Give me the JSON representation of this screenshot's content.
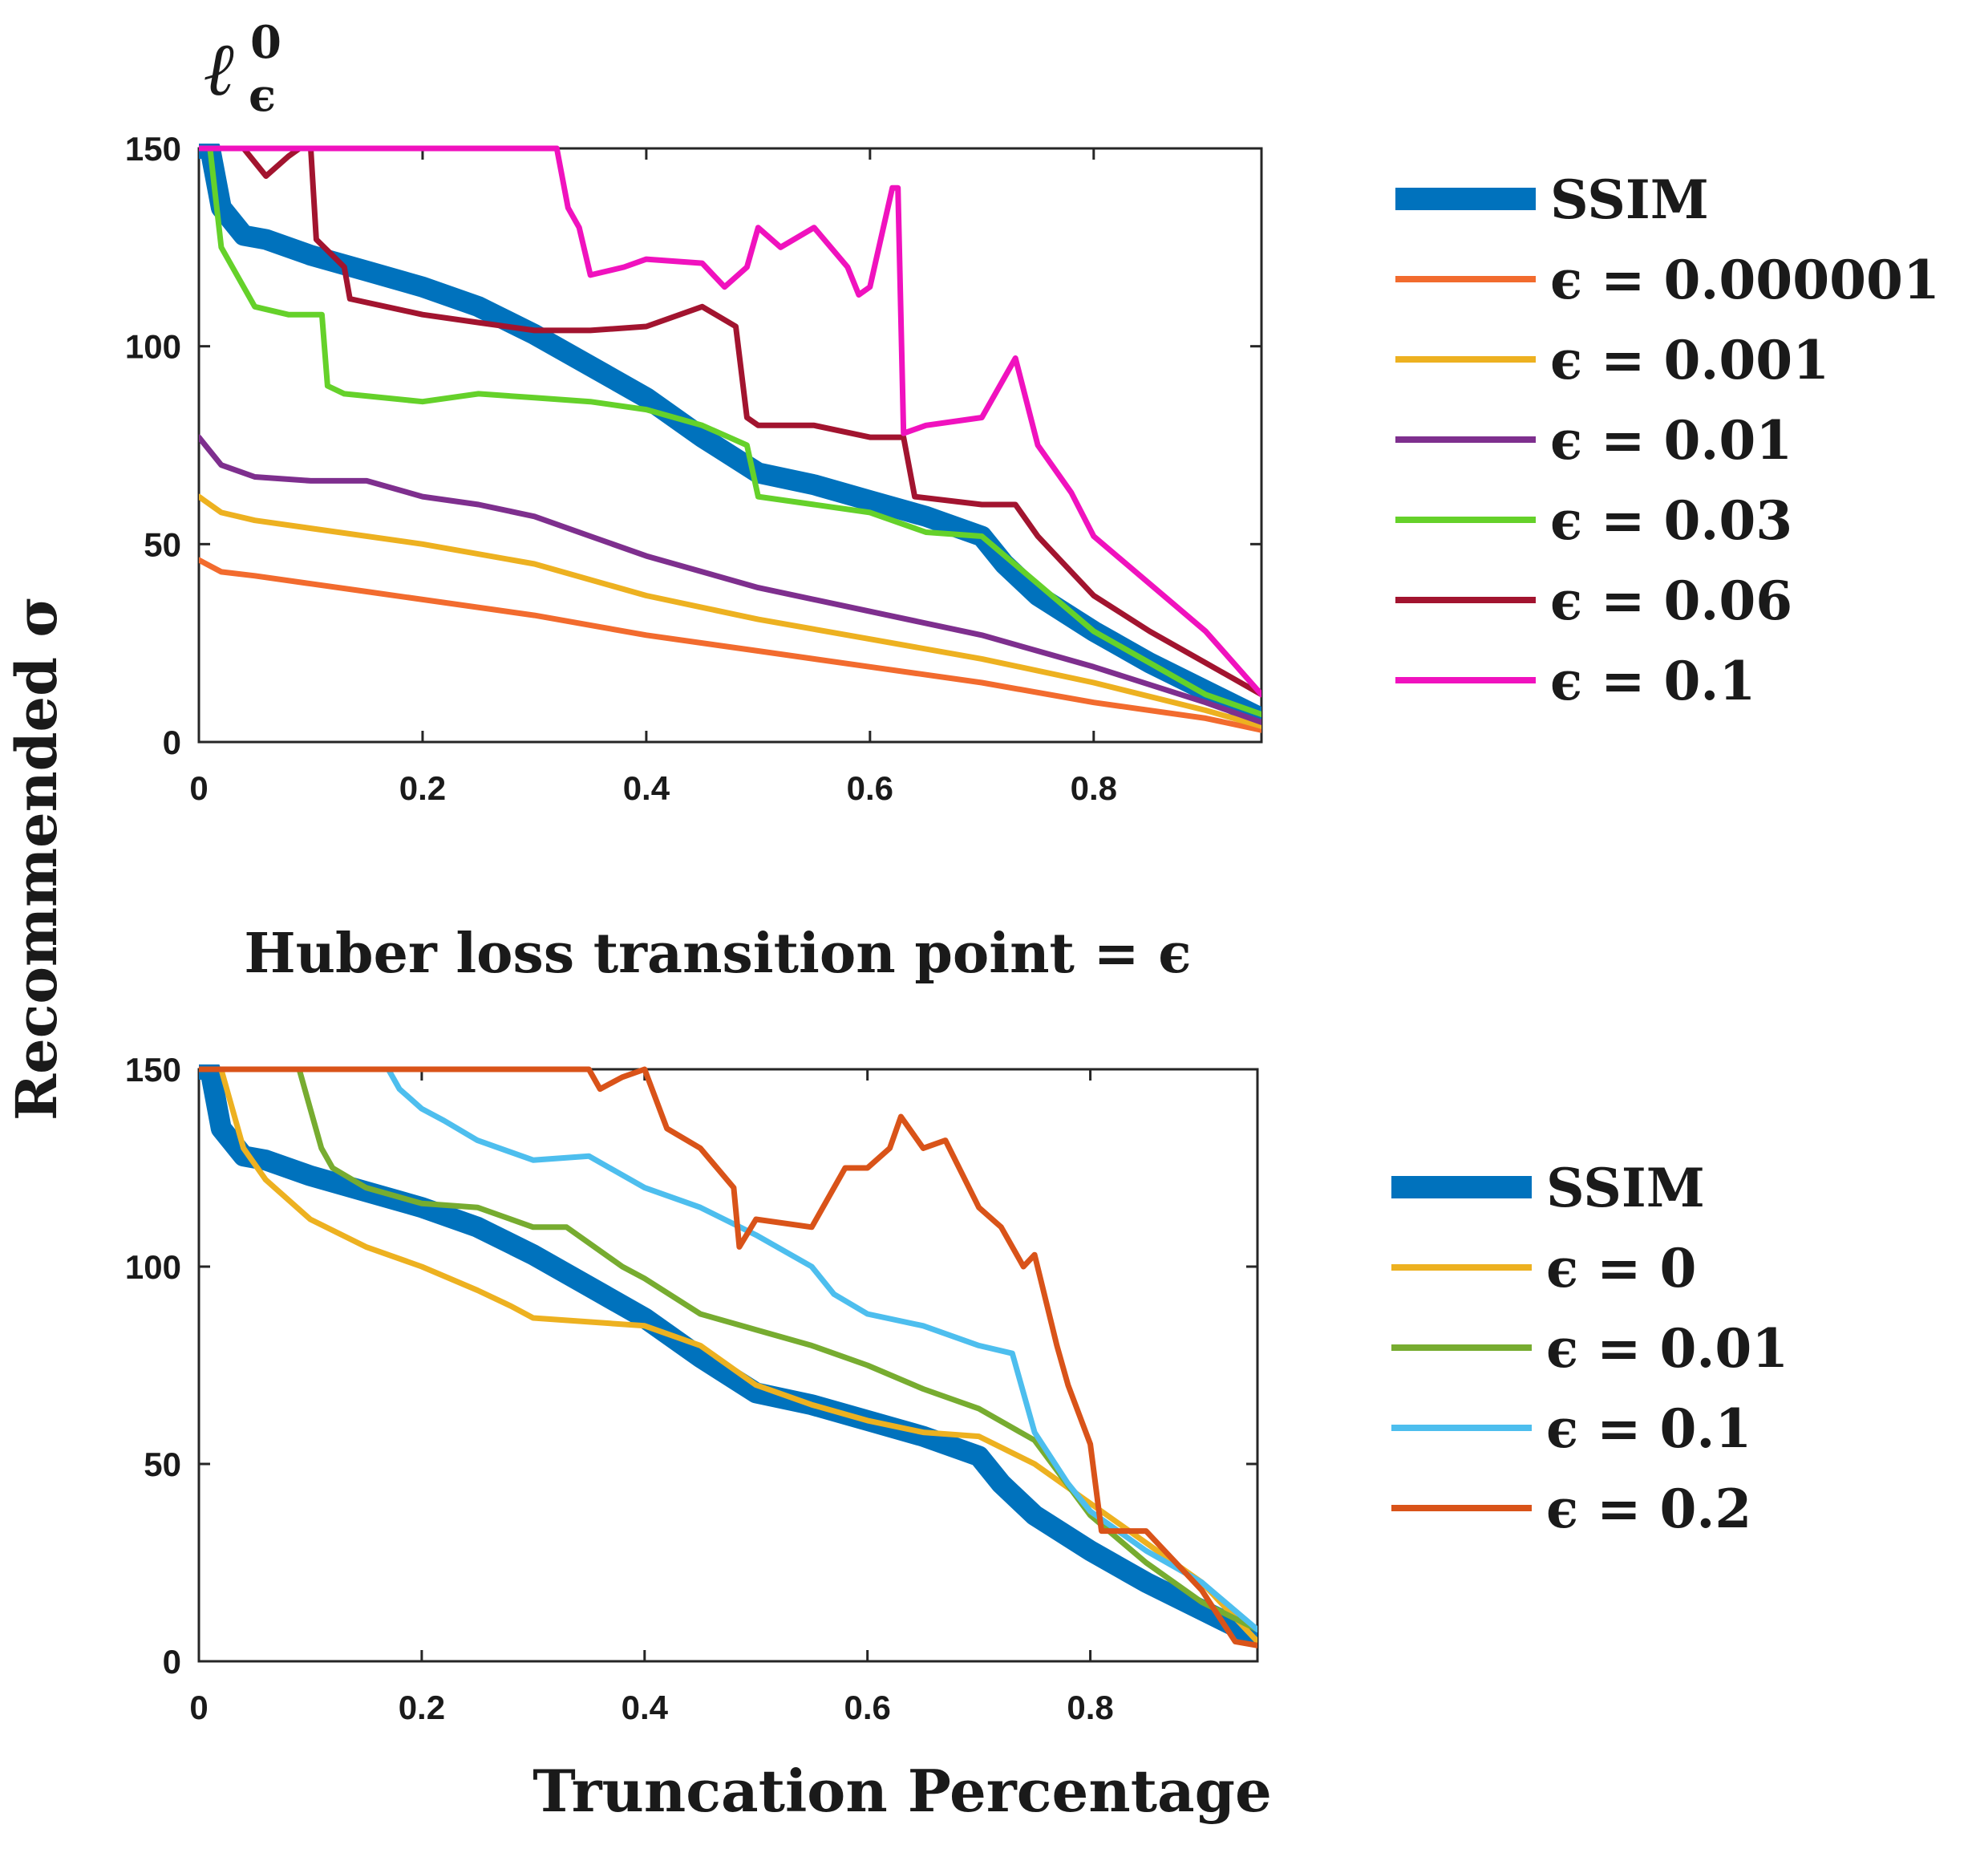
{
  "figure": {
    "ylabel": "Recommended σ",
    "xlabel": "Truncation Percentage"
  },
  "chart_data": [
    {
      "type": "line",
      "title": "ℓ⁰_ϵ",
      "title_base": "ℓ",
      "title_sup": "0",
      "title_sub": "ϵ",
      "xlabel": "Truncation Percentage",
      "ylabel": "Recommended σ",
      "xlim": [
        0,
        0.95
      ],
      "ylim": [
        0,
        150
      ],
      "xticks": [
        0,
        0.2,
        0.4,
        0.6,
        0.8
      ],
      "xtick_labels": [
        "0",
        "0.2",
        "0.4",
        "0.6",
        "0.8"
      ],
      "yticks": [
        0,
        50,
        100,
        150
      ],
      "ytick_labels": [
        "0",
        "50",
        "100",
        "150"
      ],
      "legend_position": "right",
      "series": [
        {
          "name": "SSIM",
          "color": "#0072BD",
          "thick": true,
          "x": [
            0,
            0.01,
            0.02,
            0.04,
            0.06,
            0.1,
            0.15,
            0.2,
            0.25,
            0.3,
            0.35,
            0.4,
            0.45,
            0.5,
            0.55,
            0.6,
            0.65,
            0.7,
            0.72,
            0.75,
            0.8,
            0.85,
            0.9,
            0.95
          ],
          "values": [
            150,
            150,
            135,
            128,
            127,
            123,
            119,
            115,
            110,
            103,
            95,
            87,
            77,
            68,
            65,
            61,
            57,
            52,
            45,
            37,
            28,
            20,
            13,
            6
          ]
        },
        {
          "name": "ϵ = 0.000001",
          "color": "#F26B2E",
          "thick": false,
          "x": [
            0,
            0.02,
            0.05,
            0.1,
            0.15,
            0.2,
            0.3,
            0.4,
            0.5,
            0.6,
            0.7,
            0.8,
            0.9,
            0.95
          ],
          "values": [
            46,
            43,
            42,
            40,
            38,
            36,
            32,
            27,
            23,
            19,
            15,
            10,
            6,
            3
          ]
        },
        {
          "name": "ϵ = 0.001",
          "color": "#EDB120",
          "thick": false,
          "x": [
            0,
            0.02,
            0.05,
            0.1,
            0.2,
            0.3,
            0.4,
            0.5,
            0.6,
            0.7,
            0.8,
            0.9,
            0.95
          ],
          "values": [
            62,
            58,
            56,
            54,
            50,
            45,
            37,
            31,
            26,
            21,
            15,
            8,
            4
          ]
        },
        {
          "name": "ϵ = 0.01",
          "color": "#7E2F8E",
          "thick": false,
          "x": [
            0,
            0.02,
            0.05,
            0.1,
            0.15,
            0.2,
            0.25,
            0.3,
            0.35,
            0.4,
            0.5,
            0.6,
            0.7,
            0.8,
            0.9,
            0.95
          ],
          "values": [
            77,
            70,
            67,
            66,
            66,
            62,
            60,
            57,
            52,
            47,
            39,
            33,
            27,
            19,
            10,
            5
          ]
        },
        {
          "name": "ϵ = 0.03",
          "color": "#65D12A",
          "thick": false,
          "x": [
            0,
            0.01,
            0.02,
            0.05,
            0.08,
            0.11,
            0.115,
            0.13,
            0.2,
            0.25,
            0.3,
            0.35,
            0.4,
            0.45,
            0.49,
            0.5,
            0.55,
            0.6,
            0.65,
            0.7,
            0.75,
            0.8,
            0.85,
            0.9,
            0.95
          ],
          "values": [
            150,
            150,
            125,
            110,
            108,
            108,
            90,
            88,
            86,
            88,
            87,
            86,
            84,
            80,
            75,
            62,
            60,
            58,
            53,
            52,
            40,
            28,
            20,
            12,
            7
          ]
        },
        {
          "name": "ϵ = 0.06",
          "color": "#A2142F",
          "thick": false,
          "x": [
            0,
            0.04,
            0.06,
            0.08,
            0.09,
            0.1,
            0.105,
            0.13,
            0.135,
            0.2,
            0.25,
            0.3,
            0.35,
            0.4,
            0.45,
            0.48,
            0.49,
            0.5,
            0.55,
            0.6,
            0.63,
            0.64,
            0.7,
            0.73,
            0.75,
            0.8,
            0.85,
            0.9,
            0.95
          ],
          "values": [
            150,
            150,
            143,
            148,
            150,
            150,
            127,
            120,
            112,
            108,
            106,
            104,
            104,
            105,
            110,
            105,
            82,
            80,
            80,
            77,
            77,
            62,
            60,
            60,
            52,
            37,
            28,
            20,
            12
          ]
        },
        {
          "name": "ϵ = 0.1",
          "color": "#F012BE",
          "thick": false,
          "x": [
            0,
            0.32,
            0.33,
            0.34,
            0.35,
            0.38,
            0.4,
            0.45,
            0.47,
            0.49,
            0.5,
            0.52,
            0.55,
            0.58,
            0.59,
            0.6,
            0.62,
            0.625,
            0.63,
            0.65,
            0.7,
            0.73,
            0.75,
            0.78,
            0.8,
            0.85,
            0.9,
            0.95
          ],
          "values": [
            150,
            150,
            135,
            130,
            118,
            120,
            122,
            121,
            115,
            120,
            130,
            125,
            130,
            120,
            113,
            115,
            140,
            140,
            78,
            80,
            82,
            97,
            75,
            63,
            52,
            40,
            28,
            12
          ]
        }
      ]
    },
    {
      "type": "line",
      "title": "Huber loss transition point = ϵ",
      "xlabel": "Truncation Percentage",
      "ylabel": "Recommended σ",
      "xlim": [
        0,
        0.95
      ],
      "ylim": [
        0,
        150
      ],
      "xticks": [
        0,
        0.2,
        0.4,
        0.6,
        0.8
      ],
      "xtick_labels": [
        "0",
        "0.2",
        "0.4",
        "0.6",
        "0.8"
      ],
      "yticks": [
        0,
        50,
        100,
        150
      ],
      "ytick_labels": [
        "0",
        "50",
        "100",
        "150"
      ],
      "legend_position": "right",
      "series": [
        {
          "name": "SSIM",
          "color": "#0072BD",
          "thick": true,
          "x": [
            0,
            0.01,
            0.02,
            0.04,
            0.06,
            0.1,
            0.15,
            0.2,
            0.25,
            0.3,
            0.35,
            0.4,
            0.45,
            0.5,
            0.55,
            0.6,
            0.65,
            0.7,
            0.72,
            0.75,
            0.8,
            0.85,
            0.9,
            0.95
          ],
          "values": [
            150,
            150,
            135,
            128,
            127,
            123,
            119,
            115,
            110,
            103,
            95,
            87,
            77,
            68,
            65,
            61,
            57,
            52,
            45,
            37,
            28,
            20,
            13,
            6
          ]
        },
        {
          "name": "ϵ = 0",
          "color": "#EDB120",
          "thick": false,
          "x": [
            0,
            0.02,
            0.03,
            0.04,
            0.06,
            0.1,
            0.15,
            0.2,
            0.25,
            0.28,
            0.3,
            0.35,
            0.4,
            0.45,
            0.5,
            0.55,
            0.6,
            0.65,
            0.7,
            0.75,
            0.8,
            0.85,
            0.9,
            0.95
          ],
          "values": [
            150,
            150,
            140,
            130,
            122,
            112,
            105,
            100,
            94,
            90,
            87,
            86,
            85,
            80,
            70,
            65,
            61,
            58,
            57,
            50,
            40,
            30,
            20,
            5
          ]
        },
        {
          "name": "ϵ = 0.01",
          "color": "#77AC30",
          "thick": false,
          "x": [
            0,
            0.09,
            0.1,
            0.11,
            0.12,
            0.15,
            0.2,
            0.25,
            0.3,
            0.33,
            0.35,
            0.38,
            0.4,
            0.45,
            0.5,
            0.55,
            0.6,
            0.65,
            0.7,
            0.75,
            0.8,
            0.85,
            0.9,
            0.95
          ],
          "values": [
            150,
            150,
            140,
            130,
            125,
            120,
            116,
            115,
            110,
            110,
            106,
            100,
            97,
            88,
            84,
            80,
            75,
            69,
            64,
            56,
            37,
            25,
            15,
            8
          ]
        },
        {
          "name": "ϵ = 0.1",
          "color": "#4DBEEE",
          "thick": false,
          "x": [
            0,
            0.17,
            0.18,
            0.2,
            0.22,
            0.25,
            0.3,
            0.35,
            0.4,
            0.45,
            0.5,
            0.55,
            0.57,
            0.6,
            0.65,
            0.7,
            0.73,
            0.75,
            0.78,
            0.8,
            0.85,
            0.9,
            0.95
          ],
          "values": [
            150,
            150,
            145,
            140,
            137,
            132,
            127,
            128,
            120,
            115,
            108,
            100,
            93,
            88,
            85,
            80,
            78,
            58,
            45,
            38,
            28,
            20,
            8
          ]
        },
        {
          "name": "ϵ = 0.2",
          "color": "#D95319",
          "thick": false,
          "x": [
            0,
            0.35,
            0.36,
            0.38,
            0.4,
            0.42,
            0.45,
            0.48,
            0.485,
            0.5,
            0.55,
            0.58,
            0.6,
            0.62,
            0.63,
            0.65,
            0.67,
            0.7,
            0.72,
            0.74,
            0.75,
            0.77,
            0.78,
            0.8,
            0.81,
            0.85,
            0.9,
            0.93,
            0.95
          ],
          "values": [
            150,
            150,
            145,
            148,
            150,
            135,
            130,
            120,
            105,
            112,
            110,
            125,
            125,
            130,
            138,
            130,
            132,
            115,
            110,
            100,
            103,
            80,
            70,
            55,
            33,
            33,
            18,
            5,
            4
          ]
        }
      ]
    }
  ]
}
